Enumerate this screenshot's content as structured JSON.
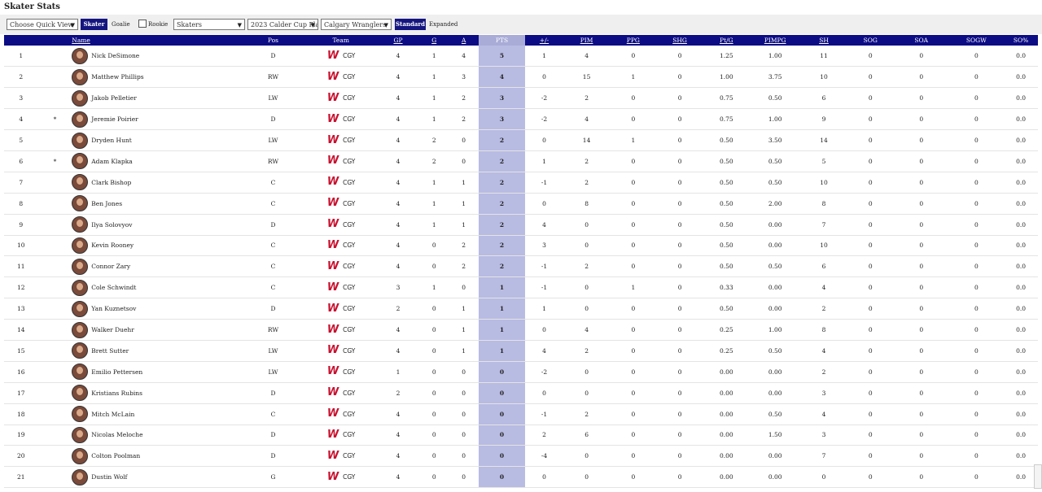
{
  "page": {
    "title": "Skater Stats"
  },
  "toolbar": {
    "quick_view": "Choose Quick View",
    "skater_label": "Skater",
    "goalie_label": "Goalie",
    "rookie_label": "Rookie",
    "player_type": "Skaters",
    "season": "2023 Calder Cup Pla",
    "team": "Calgary Wranglers",
    "standard_label": "Standard",
    "expanded_label": "Expanded"
  },
  "table": {
    "columns": [
      "Name",
      "Pos",
      "Team",
      "GP",
      "G",
      "A",
      "PTS",
      "+/-",
      "PIM",
      "PPG",
      "SHG",
      "Pt/G",
      "PIMPG",
      "SH",
      "SOG",
      "SOA",
      "SOGW",
      "SO%"
    ],
    "rows": [
      {
        "rank": "1",
        "rookie": "",
        "name": "Nick DeSimone",
        "pos": "D",
        "team": "CGY",
        "gp": "4",
        "g": "1",
        "a": "4",
        "pts": "5",
        "pm": "1",
        "pim": "4",
        "ppg": "0",
        "shg": "0",
        "ptg": "1.25",
        "pimpg": "1.00",
        "sh": "11",
        "sog": "0",
        "soa": "0",
        "sogw": "0",
        "sop": "0.0"
      },
      {
        "rank": "2",
        "rookie": "",
        "name": "Matthew Phillips",
        "pos": "RW",
        "team": "CGY",
        "gp": "4",
        "g": "1",
        "a": "3",
        "pts": "4",
        "pm": "0",
        "pim": "15",
        "ppg": "1",
        "shg": "0",
        "ptg": "1.00",
        "pimpg": "3.75",
        "sh": "10",
        "sog": "0",
        "soa": "0",
        "sogw": "0",
        "sop": "0.0"
      },
      {
        "rank": "3",
        "rookie": "",
        "name": "Jakob Pelletier",
        "pos": "LW",
        "team": "CGY",
        "gp": "4",
        "g": "1",
        "a": "2",
        "pts": "3",
        "pm": "-2",
        "pim": "2",
        "ppg": "0",
        "shg": "0",
        "ptg": "0.75",
        "pimpg": "0.50",
        "sh": "6",
        "sog": "0",
        "soa": "0",
        "sogw": "0",
        "sop": "0.0"
      },
      {
        "rank": "4",
        "rookie": "*",
        "name": "Jeremie Poirier",
        "pos": "D",
        "team": "CGY",
        "gp": "4",
        "g": "1",
        "a": "2",
        "pts": "3",
        "pm": "-2",
        "pim": "4",
        "ppg": "0",
        "shg": "0",
        "ptg": "0.75",
        "pimpg": "1.00",
        "sh": "9",
        "sog": "0",
        "soa": "0",
        "sogw": "0",
        "sop": "0.0"
      },
      {
        "rank": "5",
        "rookie": "",
        "name": "Dryden Hunt",
        "pos": "LW",
        "team": "CGY",
        "gp": "4",
        "g": "2",
        "a": "0",
        "pts": "2",
        "pm": "0",
        "pim": "14",
        "ppg": "1",
        "shg": "0",
        "ptg": "0.50",
        "pimpg": "3.50",
        "sh": "14",
        "sog": "0",
        "soa": "0",
        "sogw": "0",
        "sop": "0.0"
      },
      {
        "rank": "6",
        "rookie": "*",
        "name": "Adam Klapka",
        "pos": "RW",
        "team": "CGY",
        "gp": "4",
        "g": "2",
        "a": "0",
        "pts": "2",
        "pm": "1",
        "pim": "2",
        "ppg": "0",
        "shg": "0",
        "ptg": "0.50",
        "pimpg": "0.50",
        "sh": "5",
        "sog": "0",
        "soa": "0",
        "sogw": "0",
        "sop": "0.0"
      },
      {
        "rank": "7",
        "rookie": "",
        "name": "Clark Bishop",
        "pos": "C",
        "team": "CGY",
        "gp": "4",
        "g": "1",
        "a": "1",
        "pts": "2",
        "pm": "-1",
        "pim": "2",
        "ppg": "0",
        "shg": "0",
        "ptg": "0.50",
        "pimpg": "0.50",
        "sh": "10",
        "sog": "0",
        "soa": "0",
        "sogw": "0",
        "sop": "0.0"
      },
      {
        "rank": "8",
        "rookie": "",
        "name": "Ben Jones",
        "pos": "C",
        "team": "CGY",
        "gp": "4",
        "g": "1",
        "a": "1",
        "pts": "2",
        "pm": "0",
        "pim": "8",
        "ppg": "0",
        "shg": "0",
        "ptg": "0.50",
        "pimpg": "2.00",
        "sh": "8",
        "sog": "0",
        "soa": "0",
        "sogw": "0",
        "sop": "0.0"
      },
      {
        "rank": "9",
        "rookie": "",
        "name": "Ilya Solovyov",
        "pos": "D",
        "team": "CGY",
        "gp": "4",
        "g": "1",
        "a": "1",
        "pts": "2",
        "pm": "4",
        "pim": "0",
        "ppg": "0",
        "shg": "0",
        "ptg": "0.50",
        "pimpg": "0.00",
        "sh": "7",
        "sog": "0",
        "soa": "0",
        "sogw": "0",
        "sop": "0.0"
      },
      {
        "rank": "10",
        "rookie": "",
        "name": "Kevin Rooney",
        "pos": "C",
        "team": "CGY",
        "gp": "4",
        "g": "0",
        "a": "2",
        "pts": "2",
        "pm": "3",
        "pim": "0",
        "ppg": "0",
        "shg": "0",
        "ptg": "0.50",
        "pimpg": "0.00",
        "sh": "10",
        "sog": "0",
        "soa": "0",
        "sogw": "0",
        "sop": "0.0"
      },
      {
        "rank": "11",
        "rookie": "",
        "name": "Connor Zary",
        "pos": "C",
        "team": "CGY",
        "gp": "4",
        "g": "0",
        "a": "2",
        "pts": "2",
        "pm": "-1",
        "pim": "2",
        "ppg": "0",
        "shg": "0",
        "ptg": "0.50",
        "pimpg": "0.50",
        "sh": "6",
        "sog": "0",
        "soa": "0",
        "sogw": "0",
        "sop": "0.0"
      },
      {
        "rank": "12",
        "rookie": "",
        "name": "Cole Schwindt",
        "pos": "C",
        "team": "CGY",
        "gp": "3",
        "g": "1",
        "a": "0",
        "pts": "1",
        "pm": "-1",
        "pim": "0",
        "ppg": "1",
        "shg": "0",
        "ptg": "0.33",
        "pimpg": "0.00",
        "sh": "4",
        "sog": "0",
        "soa": "0",
        "sogw": "0",
        "sop": "0.0"
      },
      {
        "rank": "13",
        "rookie": "",
        "name": "Yan Kuznetsov",
        "pos": "D",
        "team": "CGY",
        "gp": "2",
        "g": "0",
        "a": "1",
        "pts": "1",
        "pm": "1",
        "pim": "0",
        "ppg": "0",
        "shg": "0",
        "ptg": "0.50",
        "pimpg": "0.00",
        "sh": "2",
        "sog": "0",
        "soa": "0",
        "sogw": "0",
        "sop": "0.0"
      },
      {
        "rank": "14",
        "rookie": "",
        "name": "Walker Duehr",
        "pos": "RW",
        "team": "CGY",
        "gp": "4",
        "g": "0",
        "a": "1",
        "pts": "1",
        "pm": "0",
        "pim": "4",
        "ppg": "0",
        "shg": "0",
        "ptg": "0.25",
        "pimpg": "1.00",
        "sh": "8",
        "sog": "0",
        "soa": "0",
        "sogw": "0",
        "sop": "0.0"
      },
      {
        "rank": "15",
        "rookie": "",
        "name": "Brett Sutter",
        "pos": "LW",
        "team": "CGY",
        "gp": "4",
        "g": "0",
        "a": "1",
        "pts": "1",
        "pm": "4",
        "pim": "2",
        "ppg": "0",
        "shg": "0",
        "ptg": "0.25",
        "pimpg": "0.50",
        "sh": "4",
        "sog": "0",
        "soa": "0",
        "sogw": "0",
        "sop": "0.0"
      },
      {
        "rank": "16",
        "rookie": "",
        "name": "Emilio Pettersen",
        "pos": "LW",
        "team": "CGY",
        "gp": "1",
        "g": "0",
        "a": "0",
        "pts": "0",
        "pm": "-2",
        "pim": "0",
        "ppg": "0",
        "shg": "0",
        "ptg": "0.00",
        "pimpg": "0.00",
        "sh": "2",
        "sog": "0",
        "soa": "0",
        "sogw": "0",
        "sop": "0.0"
      },
      {
        "rank": "17",
        "rookie": "",
        "name": "Kristians Rubins",
        "pos": "D",
        "team": "CGY",
        "gp": "2",
        "g": "0",
        "a": "0",
        "pts": "0",
        "pm": "0",
        "pim": "0",
        "ppg": "0",
        "shg": "0",
        "ptg": "0.00",
        "pimpg": "0.00",
        "sh": "3",
        "sog": "0",
        "soa": "0",
        "sogw": "0",
        "sop": "0.0"
      },
      {
        "rank": "18",
        "rookie": "",
        "name": "Mitch McLain",
        "pos": "C",
        "team": "CGY",
        "gp": "4",
        "g": "0",
        "a": "0",
        "pts": "0",
        "pm": "-1",
        "pim": "2",
        "ppg": "0",
        "shg": "0",
        "ptg": "0.00",
        "pimpg": "0.50",
        "sh": "4",
        "sog": "0",
        "soa": "0",
        "sogw": "0",
        "sop": "0.0"
      },
      {
        "rank": "19",
        "rookie": "",
        "name": "Nicolas Meloche",
        "pos": "D",
        "team": "CGY",
        "gp": "4",
        "g": "0",
        "a": "0",
        "pts": "0",
        "pm": "2",
        "pim": "6",
        "ppg": "0",
        "shg": "0",
        "ptg": "0.00",
        "pimpg": "1.50",
        "sh": "3",
        "sog": "0",
        "soa": "0",
        "sogw": "0",
        "sop": "0.0"
      },
      {
        "rank": "20",
        "rookie": "",
        "name": "Colton Poolman",
        "pos": "D",
        "team": "CGY",
        "gp": "4",
        "g": "0",
        "a": "0",
        "pts": "0",
        "pm": "-4",
        "pim": "0",
        "ppg": "0",
        "shg": "0",
        "ptg": "0.00",
        "pimpg": "0.00",
        "sh": "7",
        "sog": "0",
        "soa": "0",
        "sogw": "0",
        "sop": "0.0"
      },
      {
        "rank": "21",
        "rookie": "",
        "name": "Dustin Wolf",
        "pos": "G",
        "team": "CGY",
        "gp": "4",
        "g": "0",
        "a": "0",
        "pts": "0",
        "pm": "0",
        "pim": "0",
        "ppg": "0",
        "shg": "0",
        "ptg": "0.00",
        "pimpg": "0.00",
        "sh": "0",
        "sog": "0",
        "soa": "0",
        "sogw": "0",
        "sop": "0.0"
      }
    ]
  },
  "colors": {
    "header_bg": "#0c0c85",
    "pts_col": "#b8bbe2",
    "logo_red": "#c8102e"
  },
  "icons": {
    "team_logo": "W"
  }
}
